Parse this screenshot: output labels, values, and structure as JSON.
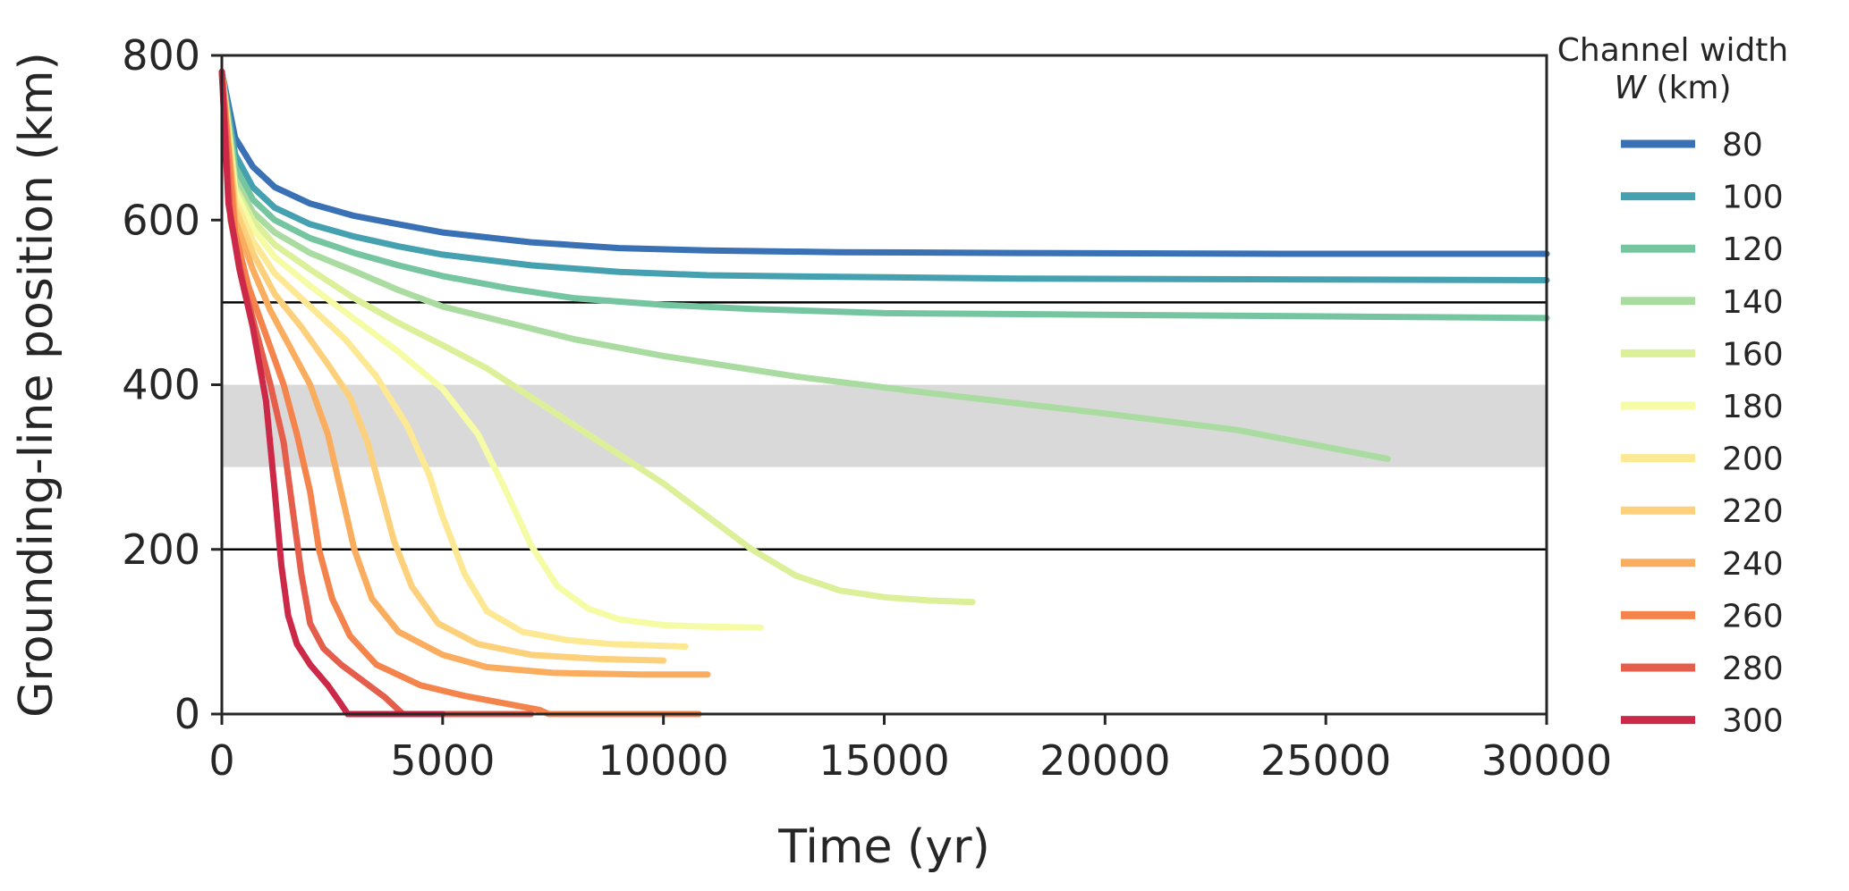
{
  "chart_data": {
    "type": "line",
    "xlabel": "Time (yr)",
    "ylabel": "Grounding-line position (km)",
    "xlim": [
      0,
      30000
    ],
    "ylim": [
      0,
      800
    ],
    "xticks": [
      0,
      5000,
      10000,
      15000,
      20000,
      25000,
      30000
    ],
    "yticks": [
      0,
      200,
      400,
      600,
      800
    ],
    "xtick_labels": [
      "0",
      "5000",
      "10000",
      "15000",
      "20000",
      "25000",
      "30000"
    ],
    "ytick_labels": [
      "0",
      "200",
      "400",
      "600",
      "800"
    ],
    "grid": false,
    "reference_lines": [
      200,
      500
    ],
    "shaded_band": {
      "y": [
        300,
        400
      ],
      "color": "#d9d9d9"
    },
    "legend": {
      "title_line1": "Channel width",
      "title_var": "W",
      "title_unit": " (km)",
      "placement": "right"
    },
    "series": [
      {
        "name": "80",
        "color": "#3a71b5",
        "points": [
          [
            0,
            780
          ],
          [
            300,
            700
          ],
          [
            700,
            665
          ],
          [
            1200,
            640
          ],
          [
            2000,
            620
          ],
          [
            3000,
            605
          ],
          [
            4000,
            595
          ],
          [
            5000,
            585
          ],
          [
            7000,
            573
          ],
          [
            9000,
            566
          ],
          [
            11000,
            563
          ],
          [
            14000,
            561
          ],
          [
            18000,
            560
          ],
          [
            24000,
            559
          ],
          [
            30000,
            559
          ]
        ]
      },
      {
        "name": "100",
        "color": "#45a0b0",
        "points": [
          [
            0,
            780
          ],
          [
            300,
            680
          ],
          [
            700,
            640
          ],
          [
            1200,
            615
          ],
          [
            2000,
            595
          ],
          [
            3000,
            580
          ],
          [
            4000,
            568
          ],
          [
            5000,
            558
          ],
          [
            7000,
            545
          ],
          [
            9000,
            537
          ],
          [
            11000,
            533
          ],
          [
            14000,
            531
          ],
          [
            18000,
            529
          ],
          [
            24000,
            528
          ],
          [
            30000,
            527
          ]
        ]
      },
      {
        "name": "120",
        "color": "#76c5a1",
        "points": [
          [
            0,
            780
          ],
          [
            300,
            665
          ],
          [
            700,
            625
          ],
          [
            1200,
            600
          ],
          [
            2000,
            578
          ],
          [
            3000,
            560
          ],
          [
            4000,
            545
          ],
          [
            5000,
            532
          ],
          [
            6500,
            517
          ],
          [
            8000,
            505
          ],
          [
            10000,
            497
          ],
          [
            12000,
            492
          ],
          [
            15000,
            487
          ],
          [
            20000,
            485
          ],
          [
            25000,
            483
          ],
          [
            30000,
            481
          ]
        ]
      },
      {
        "name": "140",
        "color": "#aadca2",
        "points": [
          [
            0,
            780
          ],
          [
            300,
            650
          ],
          [
            700,
            610
          ],
          [
            1200,
            585
          ],
          [
            2000,
            560
          ],
          [
            3000,
            538
          ],
          [
            4000,
            515
          ],
          [
            5000,
            495
          ],
          [
            6500,
            475
          ],
          [
            8000,
            455
          ],
          [
            10000,
            435
          ],
          [
            13000,
            410
          ],
          [
            16000,
            390
          ],
          [
            20000,
            365
          ],
          [
            23000,
            345
          ],
          [
            26400,
            310
          ]
        ]
      },
      {
        "name": "160",
        "color": "#dcf09a",
        "points": [
          [
            0,
            780
          ],
          [
            300,
            640
          ],
          [
            700,
            600
          ],
          [
            1200,
            570
          ],
          [
            2000,
            540
          ],
          [
            3000,
            505
          ],
          [
            4000,
            475
          ],
          [
            5000,
            448
          ],
          [
            6000,
            420
          ],
          [
            7000,
            385
          ],
          [
            8000,
            350
          ],
          [
            9000,
            315
          ],
          [
            10000,
            280
          ],
          [
            11000,
            240
          ],
          [
            12000,
            200
          ],
          [
            13000,
            168
          ],
          [
            14000,
            150
          ],
          [
            15000,
            142
          ],
          [
            16000,
            138
          ],
          [
            17000,
            136
          ]
        ]
      },
      {
        "name": "180",
        "color": "#f6fba6",
        "points": [
          [
            0,
            780
          ],
          [
            300,
            635
          ],
          [
            700,
            590
          ],
          [
            1200,
            555
          ],
          [
            2000,
            520
          ],
          [
            3000,
            480
          ],
          [
            4000,
            440
          ],
          [
            5000,
            395
          ],
          [
            5800,
            340
          ],
          [
            6400,
            275
          ],
          [
            7000,
            205
          ],
          [
            7600,
            155
          ],
          [
            8300,
            128
          ],
          [
            9000,
            115
          ],
          [
            10000,
            108
          ],
          [
            11000,
            106
          ],
          [
            12200,
            105
          ]
        ]
      },
      {
        "name": "200",
        "color": "#fde993",
        "points": [
          [
            0,
            780
          ],
          [
            300,
            625
          ],
          [
            700,
            575
          ],
          [
            1200,
            535
          ],
          [
            2000,
            495
          ],
          [
            2800,
            455
          ],
          [
            3500,
            410
          ],
          [
            4200,
            350
          ],
          [
            4700,
            290
          ],
          [
            5000,
            240
          ],
          [
            5500,
            170
          ],
          [
            6000,
            125
          ],
          [
            6800,
            100
          ],
          [
            7800,
            90
          ],
          [
            8800,
            85
          ],
          [
            10500,
            82
          ]
        ]
      },
      {
        "name": "220",
        "color": "#fdd07c",
        "points": [
          [
            0,
            780
          ],
          [
            300,
            615
          ],
          [
            700,
            560
          ],
          [
            1200,
            510
          ],
          [
            1800,
            470
          ],
          [
            2400,
            425
          ],
          [
            2900,
            385
          ],
          [
            3300,
            330
          ],
          [
            3600,
            270
          ],
          [
            3900,
            210
          ],
          [
            4300,
            155
          ],
          [
            4900,
            110
          ],
          [
            5800,
            85
          ],
          [
            7000,
            72
          ],
          [
            8500,
            67
          ],
          [
            10000,
            65
          ]
        ]
      },
      {
        "name": "240",
        "color": "#fbad5f",
        "points": [
          [
            0,
            780
          ],
          [
            300,
            600
          ],
          [
            700,
            540
          ],
          [
            1100,
            490
          ],
          [
            1600,
            440
          ],
          [
            2000,
            400
          ],
          [
            2400,
            340
          ],
          [
            2700,
            270
          ],
          [
            3000,
            200
          ],
          [
            3400,
            140
          ],
          [
            4000,
            100
          ],
          [
            5000,
            72
          ],
          [
            6000,
            57
          ],
          [
            7500,
            50
          ],
          [
            9500,
            48
          ],
          [
            11000,
            48
          ]
        ]
      },
      {
        "name": "260",
        "color": "#f5844c",
        "points": [
          [
            0,
            780
          ],
          [
            300,
            585
          ],
          [
            600,
            520
          ],
          [
            1000,
            460
          ],
          [
            1400,
            400
          ],
          [
            1700,
            340
          ],
          [
            2000,
            270
          ],
          [
            2200,
            200
          ],
          [
            2500,
            140
          ],
          [
            2900,
            95
          ],
          [
            3500,
            60
          ],
          [
            4500,
            35
          ],
          [
            5500,
            22
          ],
          [
            6500,
            12
          ],
          [
            7200,
            5
          ],
          [
            7400,
            0
          ],
          [
            10800,
            0
          ]
        ]
      },
      {
        "name": "280",
        "color": "#e55d4b",
        "points": [
          [
            0,
            780
          ],
          [
            200,
            600
          ],
          [
            500,
            520
          ],
          [
            800,
            460
          ],
          [
            1100,
            400
          ],
          [
            1400,
            330
          ],
          [
            1600,
            250
          ],
          [
            1800,
            170
          ],
          [
            2000,
            110
          ],
          [
            2300,
            80
          ],
          [
            2700,
            60
          ],
          [
            3200,
            40
          ],
          [
            3700,
            20
          ],
          [
            4000,
            5
          ],
          [
            4100,
            0
          ],
          [
            7000,
            0
          ]
        ]
      },
      {
        "name": "300",
        "color": "#cc2948",
        "points": [
          [
            0,
            780
          ],
          [
            150,
            620
          ],
          [
            400,
            540
          ],
          [
            700,
            470
          ],
          [
            1000,
            380
          ],
          [
            1200,
            270
          ],
          [
            1350,
            180
          ],
          [
            1500,
            120
          ],
          [
            1700,
            85
          ],
          [
            2000,
            60
          ],
          [
            2400,
            35
          ],
          [
            2700,
            12
          ],
          [
            2850,
            0
          ],
          [
            5000,
            0
          ]
        ]
      }
    ]
  }
}
